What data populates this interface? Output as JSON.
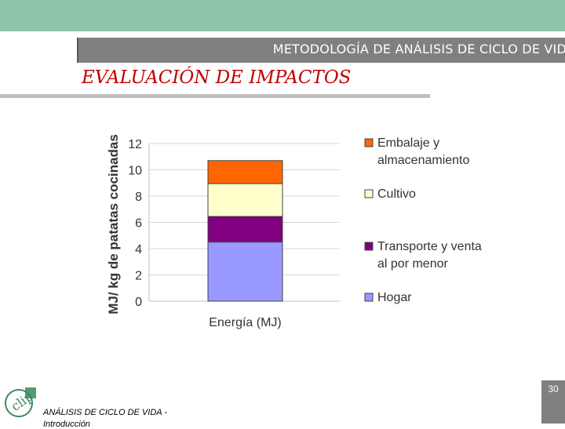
{
  "header": {
    "title": "METODOLOGÍA DE ANÁLISIS DE CICLO DE VID"
  },
  "section": {
    "title": "EVALUACIÓN DE IMPACTOS"
  },
  "footer": {
    "text": "ANÁLISIS DE CICLO DE VIDA -",
    "text_cut": "Introducción",
    "page_number": "30",
    "logo_text": "clip"
  },
  "colors": {
    "top_band": "#8fc4a8",
    "title_red": "#c00000"
  },
  "chart_data": {
    "type": "bar",
    "stacked": true,
    "title": "",
    "categories": [
      "Energía (MJ)"
    ],
    "ylabel": "MJ/ kg de patatas cocinadas",
    "xlabel": "",
    "ylim": [
      0,
      12
    ],
    "yticks": [
      0,
      2,
      4,
      6,
      8,
      10,
      12
    ],
    "series": [
      {
        "name": "Hogar",
        "values": [
          4.5
        ],
        "color": "#9999ff"
      },
      {
        "name": "Transporte y venta al por menor",
        "values": [
          1.95
        ],
        "color": "#800080"
      },
      {
        "name": "Cultivo",
        "values": [
          2.5
        ],
        "color": "#ffffcc"
      },
      {
        "name": "Embalaje y almacenamiento",
        "values": [
          1.75
        ],
        "color": "#ff6600"
      }
    ],
    "legend": [
      {
        "lines": [
          "Embalaje y",
          "almacenamiento"
        ],
        "color": "#ff6600"
      },
      {
        "lines": [
          "Cultivo"
        ],
        "color": "#ffffcc"
      },
      {
        "lines": [
          "Transporte y venta",
          "al por menor"
        ],
        "color": "#800080"
      },
      {
        "lines": [
          "Hogar"
        ],
        "color": "#9999ff"
      }
    ],
    "legend_position": "right"
  }
}
